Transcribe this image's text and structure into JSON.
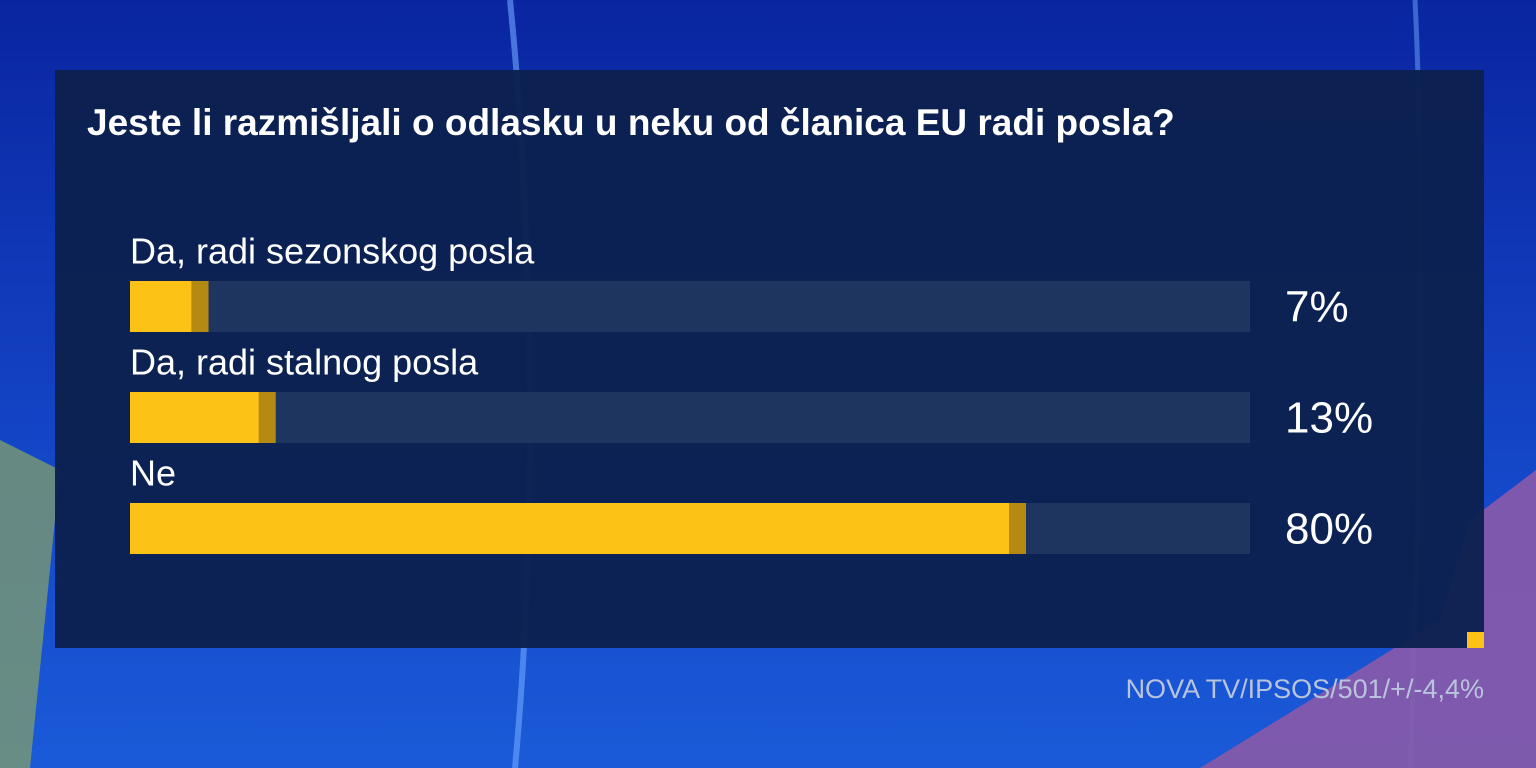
{
  "chart_data": {
    "type": "hbar",
    "title": "Jeste li razmišljali o odlasku u neku od članica EU radi posla?",
    "categories": [
      "Da, radi sezonskog posla",
      "Da, radi stalnog posla",
      "Ne"
    ],
    "values": [
      7,
      13,
      80
    ],
    "value_labels": [
      "7%",
      "13%",
      "80%"
    ],
    "color": "#fcc215",
    "xlim": [
      0,
      100
    ],
    "source": "NOVA TV/IPSOS/501/+/-4,4%"
  }
}
